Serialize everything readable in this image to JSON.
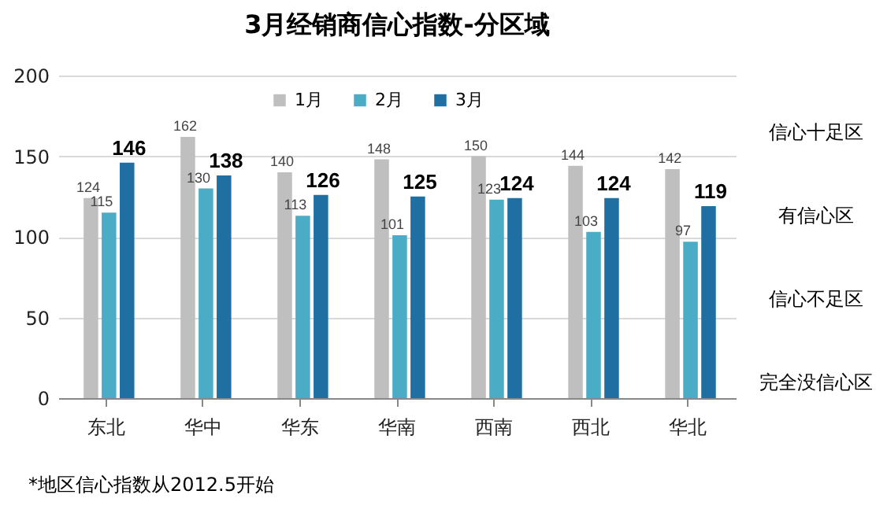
{
  "chart_data": {
    "type": "bar",
    "title": "3月经销商信心指数-分区域",
    "categories": [
      "东北",
      "华中",
      "华东",
      "华南",
      "西南",
      "西北",
      "华北"
    ],
    "series": [
      {
        "name": "1月",
        "color": "#bfbfbf",
        "values": [
          124,
          162,
          140,
          148,
          150,
          144,
          142
        ]
      },
      {
        "name": "2月",
        "color": "#4bacc6",
        "values": [
          115,
          130,
          113,
          101,
          123,
          103,
          97
        ]
      },
      {
        "name": "3月",
        "color": "#1f6fa3",
        "values": [
          146,
          138,
          126,
          125,
          124,
          124,
          119
        ]
      }
    ],
    "ylim": [
      0,
      200
    ],
    "yticks": [
      0,
      50,
      100,
      150,
      200
    ],
    "grid": "y",
    "legend": "top",
    "data_labels": true,
    "annotations": [
      "信心十足区",
      "有信心区",
      "信心不足区",
      "完全没信心区",
      "*地区信心指数从2012.5开始"
    ]
  }
}
